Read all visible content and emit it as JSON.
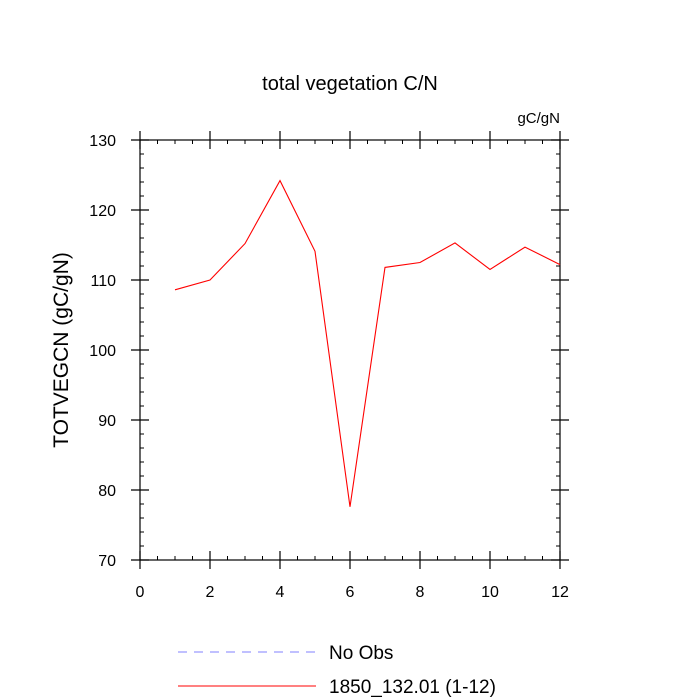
{
  "chart_data": {
    "type": "line",
    "title": "total vegetation C/N",
    "units_label": "gC/gN",
    "xlabel": "",
    "ylabel": "TOTVEGCN  (gC/gN)",
    "xlim": [
      0,
      12
    ],
    "ylim": [
      70,
      130
    ],
    "x_ticks": [
      0,
      2,
      4,
      6,
      8,
      10,
      12
    ],
    "y_ticks": [
      70,
      80,
      90,
      100,
      110,
      120,
      130
    ],
    "grid": false,
    "legend_position": "bottom",
    "series": [
      {
        "name": "No Obs",
        "color": "#8080ff",
        "dash": "dashed",
        "x": [],
        "y": []
      },
      {
        "name": "1850_132.01 (1-12)",
        "color": "#ff0000",
        "dash": "solid",
        "x": [
          1,
          2,
          3,
          4,
          5,
          6,
          7,
          8,
          9,
          10,
          11,
          12
        ],
        "y": [
          108.6,
          110.0,
          115.2,
          124.2,
          114.1,
          77.6,
          111.8,
          112.5,
          115.3,
          111.5,
          114.7,
          112.2
        ]
      }
    ]
  }
}
